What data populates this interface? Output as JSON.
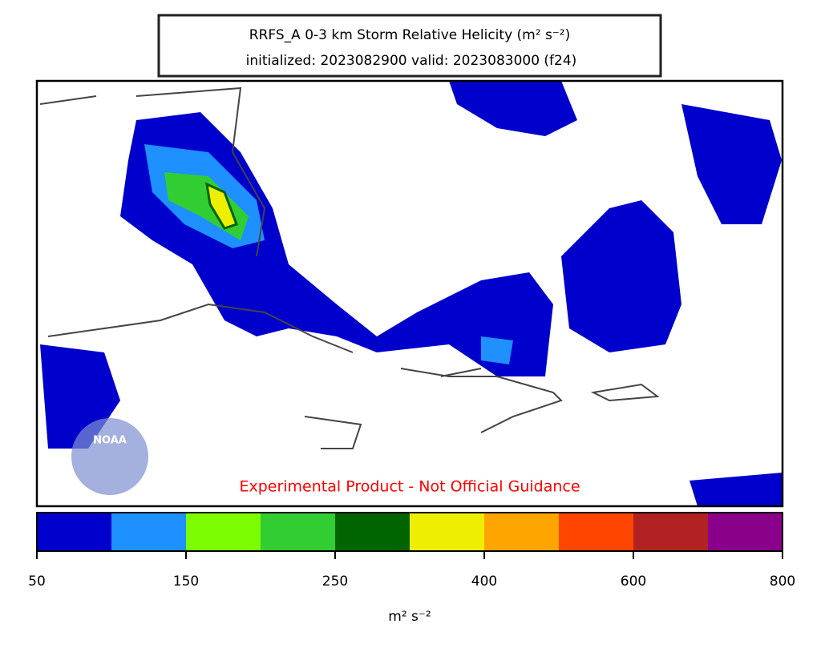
{
  "header": {
    "title": "RRFS_A 0-3 km Storm Relative Helicity (m² s⁻²)",
    "subtitle": "initialized: 2023082900 valid: 2023083000 (f24)"
  },
  "map": {
    "watermark": "Experimental Product - Not Official Guidance",
    "logo_text": "NOAA"
  },
  "colorbar": {
    "label": "m² s⁻²",
    "bounds": [
      50,
      100,
      150,
      200,
      250,
      300,
      400,
      500,
      600,
      700,
      800
    ],
    "colors": [
      "#0000cd",
      "#1e90ff",
      "#7cfc00",
      "#32cd32",
      "#006400",
      "#eeee00",
      "#ffa500",
      "#ff4500",
      "#b22222",
      "#8b008b"
    ],
    "ticks": [
      50,
      150,
      250,
      400,
      600,
      800
    ]
  }
}
